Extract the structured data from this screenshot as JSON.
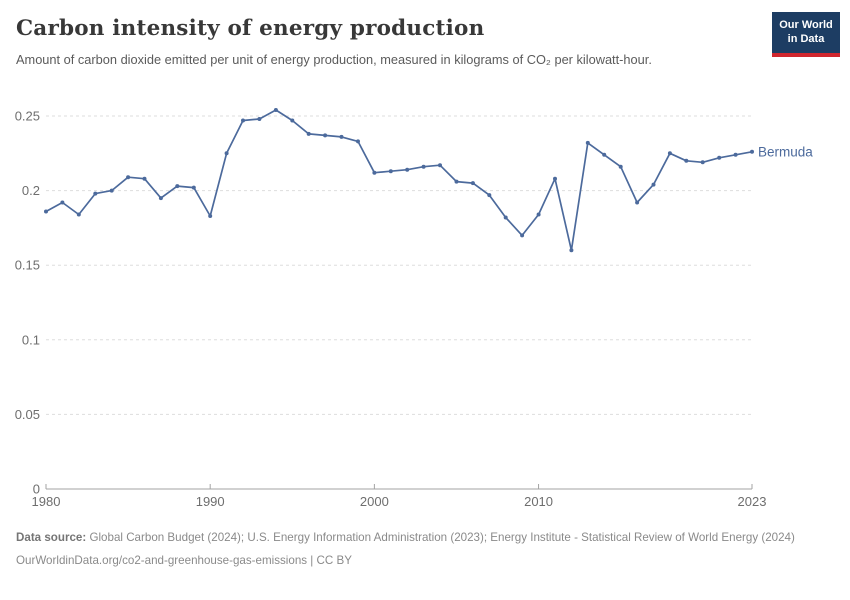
{
  "header": {
    "title": "Carbon intensity of energy production",
    "subtitle": "Amount of carbon dioxide emitted per unit of energy production, measured in kilograms of CO₂ per kilowatt-hour.",
    "logo_line1": "Our World",
    "logo_line2": "in Data"
  },
  "colors": {
    "line": "#4c6a9c",
    "grid": "#dddddd",
    "axis": "#a3a3a3",
    "axis_text": "#6e6e6e",
    "logo_bg": "#1d3d63",
    "logo_accent": "#d0262e"
  },
  "chart_data": {
    "type": "line",
    "title": "Carbon intensity of energy production",
    "subtitle": "Amount of carbon dioxide emitted per unit of energy production, measured in kilograms of CO₂ per kilowatt-hour.",
    "unit": "kilograms of CO₂ per kilowatt-hour",
    "grid": true,
    "legend_position": "end-of-line",
    "xlim": [
      1980,
      2023
    ],
    "ylim": [
      0,
      0.25
    ],
    "xticks": [
      1980,
      1990,
      2000,
      2010,
      2023
    ],
    "yticks": [
      {
        "value": 0,
        "label": "0"
      },
      {
        "value": 0.05,
        "label": "0.05"
      },
      {
        "value": 0.1,
        "label": "0.1"
      },
      {
        "value": 0.15,
        "label": "0.15"
      },
      {
        "value": 0.2,
        "label": "0.2"
      },
      {
        "value": 0.25,
        "label": "0.25"
      }
    ],
    "x": [
      1980,
      1981,
      1982,
      1983,
      1984,
      1985,
      1986,
      1987,
      1988,
      1989,
      1990,
      1991,
      1992,
      1993,
      1994,
      1995,
      1996,
      1997,
      1998,
      1999,
      2000,
      2001,
      2002,
      2003,
      2004,
      2005,
      2006,
      2007,
      2008,
      2009,
      2010,
      2011,
      2012,
      2013,
      2014,
      2015,
      2016,
      2017,
      2018,
      2019,
      2020,
      2021,
      2022,
      2023
    ],
    "series": [
      {
        "name": "Bermuda",
        "values": [
          0.186,
          0.192,
          0.184,
          0.198,
          0.2,
          0.209,
          0.208,
          0.195,
          0.203,
          0.202,
          0.183,
          0.225,
          0.247,
          0.248,
          0.254,
          0.247,
          0.238,
          0.237,
          0.236,
          0.233,
          0.212,
          0.213,
          0.214,
          0.216,
          0.217,
          0.206,
          0.205,
          0.197,
          0.182,
          0.17,
          0.184,
          0.208,
          0.16,
          0.232,
          0.224,
          0.216,
          0.192,
          0.204,
          0.225,
          0.22,
          0.219,
          0.222,
          0.224,
          0.226
        ]
      }
    ]
  },
  "footer": {
    "datasource_label": "Data source:",
    "datasource_text": " Global Carbon Budget (2024); U.S. Energy Information Administration (2023); Energy Institute - Statistical Review of World Energy (2024)",
    "url": "OurWorldinData.org/co2-and-greenhouse-gas-emissions",
    "license": " | CC BY"
  }
}
